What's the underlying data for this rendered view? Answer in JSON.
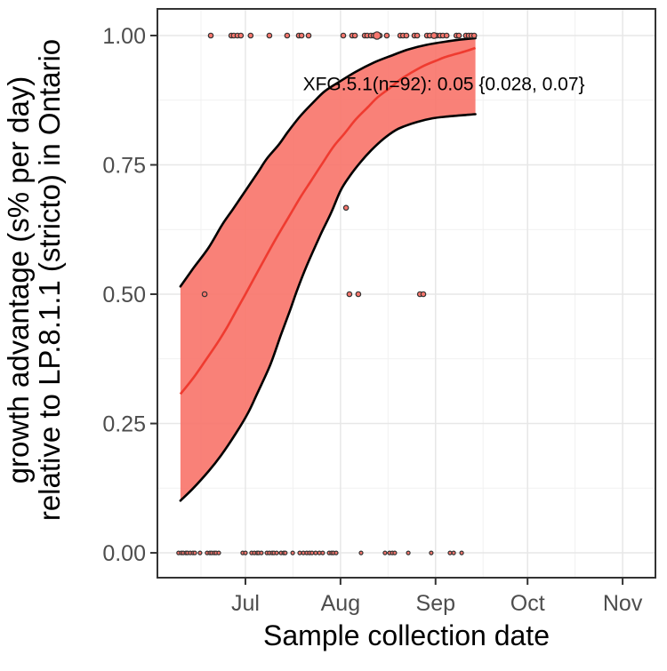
{
  "figure": {
    "x_label": "Sample collection date",
    "y_label_line1": "growth advantage (s% per day)",
    "y_label_line2": "relative to LP.8.1.1 (stricto) in Ontario",
    "annotation_text": "XFG.5.1(n=92): 0.05 {0.028, 0.07}"
  },
  "chart_data": {
    "type": "scatter",
    "description": "Logistic fit of growth advantage of XFG.5.1 relative to LP.8.1.1 (stricto) in Ontario vs sample collection date, with confidence ribbon and binary observations jittered at 0 and 1",
    "title": "",
    "xlabel": "Sample collection date",
    "ylabel": "growth advantage (s% per day) relative to LP.8.1.1 (stricto) in Ontario",
    "x_unit_days_since_jun1": true,
    "x_range_days": [
      1.3,
      163.7
    ],
    "y_range": [
      -0.048,
      1.0515
    ],
    "x_ticks": [
      {
        "day": 30,
        "label": "Jul"
      },
      {
        "day": 61,
        "label": "Aug"
      },
      {
        "day": 92,
        "label": "Sep"
      },
      {
        "day": 122,
        "label": "Oct"
      },
      {
        "day": 153,
        "label": "Nov"
      }
    ],
    "x_minor_days": [
      15.5,
      45.5,
      76.5,
      107.5,
      137.5
    ],
    "y_ticks": [
      {
        "v": 1.0,
        "label": "1.00"
      },
      {
        "v": 0.75,
        "label": "0.75"
      },
      {
        "v": 0.5,
        "label": "0.50"
      },
      {
        "v": 0.25,
        "label": "0.25"
      },
      {
        "v": 0.0,
        "label": "0.00"
      }
    ],
    "y_minor": [
      0.125,
      0.375,
      0.625,
      0.875
    ],
    "colors": {
      "ribbon_fill": "#F8766D",
      "ribbon_edge": "#000000",
      "center_line": "#EF3B30",
      "point_fill": "#F8766D",
      "point_stroke": "#333333",
      "grid_major": "#E7E7E7",
      "grid_minor": "#F1F1F1",
      "panel_border": "#333333",
      "axis_text": "#4d4d4d"
    },
    "annotation": {
      "text": "XFG.5.1(n=92): 0.05 {0.028, 0.07}",
      "day": 94.7,
      "v": 0.894,
      "n": 92,
      "estimate": 0.05,
      "ci": [
        0.028,
        0.07
      ]
    },
    "ribbon": {
      "upper": [
        [
          8.8,
          0.515
        ],
        [
          13,
          0.55
        ],
        [
          18,
          0.59
        ],
        [
          22.5,
          0.635
        ],
        [
          26,
          0.665
        ],
        [
          30,
          0.7
        ],
        [
          34,
          0.735
        ],
        [
          37,
          0.762
        ],
        [
          41,
          0.79
        ],
        [
          44,
          0.815
        ],
        [
          48,
          0.845
        ],
        [
          52,
          0.87
        ],
        [
          56,
          0.893
        ],
        [
          61,
          0.912
        ],
        [
          66,
          0.93
        ],
        [
          72,
          0.948
        ],
        [
          78,
          0.962
        ],
        [
          83,
          0.973
        ],
        [
          89,
          0.982
        ],
        [
          95,
          0.988
        ],
        [
          100,
          0.992
        ],
        [
          105,
          0.995
        ]
      ],
      "lower": [
        [
          8.8,
          0.101
        ],
        [
          13,
          0.125
        ],
        [
          18,
          0.158
        ],
        [
          22,
          0.188
        ],
        [
          27,
          0.232
        ],
        [
          31,
          0.272
        ],
        [
          34,
          0.31
        ],
        [
          38,
          0.362
        ],
        [
          41.5,
          0.42
        ],
        [
          44.5,
          0.468
        ],
        [
          47,
          0.51
        ],
        [
          50,
          0.555
        ],
        [
          54.5,
          0.615
        ],
        [
          58,
          0.658
        ],
        [
          61,
          0.7
        ],
        [
          64,
          0.728
        ],
        [
          67.5,
          0.755
        ],
        [
          71,
          0.778
        ],
        [
          75,
          0.8
        ],
        [
          79,
          0.817
        ],
        [
          82,
          0.825
        ],
        [
          86,
          0.833
        ],
        [
          91,
          0.84
        ],
        [
          96,
          0.8435
        ],
        [
          101,
          0.846
        ],
        [
          105,
          0.848
        ]
      ]
    },
    "center_line": [
      [
        8.8,
        0.307
      ],
      [
        13,
        0.338
      ],
      [
        17,
        0.372
      ],
      [
        21,
        0.407
      ],
      [
        24,
        0.436
      ],
      [
        27,
        0.468
      ],
      [
        30,
        0.5
      ],
      [
        33.5,
        0.538
      ],
      [
        37,
        0.576
      ],
      [
        40.5,
        0.613
      ],
      [
        44,
        0.648
      ],
      [
        48,
        0.688
      ],
      [
        51.5,
        0.72
      ],
      [
        55,
        0.752
      ],
      [
        58.7,
        0.785
      ],
      [
        62.5,
        0.812
      ],
      [
        66,
        0.838
      ],
      [
        70,
        0.862
      ],
      [
        73,
        0.88
      ],
      [
        77,
        0.898
      ],
      [
        80.5,
        0.915
      ],
      [
        84,
        0.928
      ],
      [
        88,
        0.941
      ],
      [
        92,
        0.951
      ],
      [
        95,
        0.958
      ],
      [
        99,
        0.965
      ],
      [
        102,
        0.97
      ],
      [
        105,
        0.976
      ]
    ],
    "points_top_v": 1.0,
    "points_top_days": [
      18.7,
      25.4,
      26.2,
      27.4,
      28.5,
      31.7,
      37.8,
      43.6,
      47.4,
      48.3,
      50.6,
      61.9,
      64.8,
      65.7,
      68.9,
      69.7,
      70.9,
      71.8,
      73.8,
      76.1,
      80.5,
      81.4,
      82.5,
      85.1,
      86.0,
      89.2,
      90.1,
      92.4,
      93.5,
      94.4,
      95.6,
      98.8,
      99.6,
      101.9,
      102.8,
      103.7,
      104.6
    ],
    "points_top_big": [
      [
        72.9,
        4.2
      ],
      [
        91.5,
        3.3
      ]
    ],
    "points_bottom_v": 0.0,
    "points_bottom_days": [
      8.2,
      9.1,
      9.7,
      10.6,
      11.1,
      12.0,
      12.9,
      13.5,
      15.2,
      17.5,
      18.4,
      19.0,
      19.8,
      20.4,
      21.3,
      29.1,
      30.0,
      32.0,
      32.9,
      33.8,
      34.3,
      35.2,
      37.0,
      37.8,
      38.7,
      39.3,
      40.2,
      41.6,
      42.5,
      43.0,
      45.4,
      47.7,
      48.9,
      50.0,
      50.9,
      51.7,
      52.9,
      54.1,
      55.2,
      57.3,
      58.1,
      58.7,
      59.6,
      67.7,
      75.5,
      77.0,
      77.9,
      78.7,
      83.1,
      90.6,
      96.7,
      97.9,
      100.5
    ],
    "points_mid": [
      {
        "day": 16.7,
        "v": 0.5
      },
      {
        "day": 62.8,
        "v": 0.667
      },
      {
        "day": 63.9,
        "v": 0.5
      },
      {
        "day": 66.8,
        "v": 0.5
      },
      {
        "day": 86.9,
        "v": 0.5
      },
      {
        "day": 88.0,
        "v": 0.5
      }
    ]
  }
}
